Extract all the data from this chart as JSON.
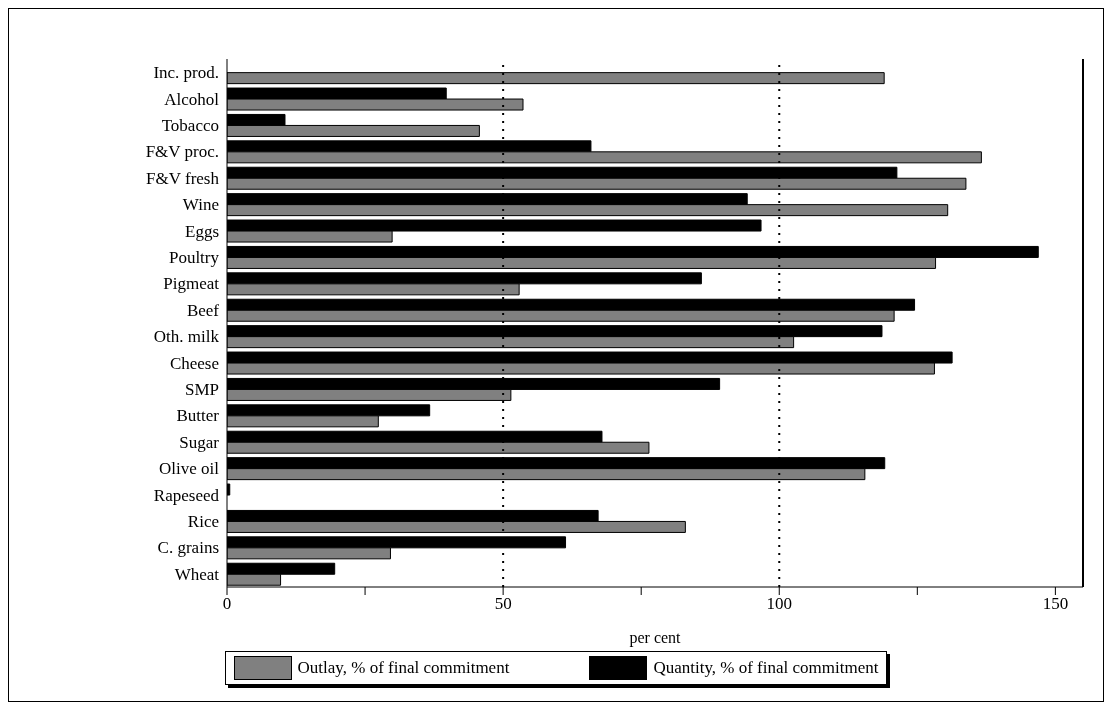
{
  "chart_data": {
    "type": "bar",
    "orientation": "horizontal",
    "xlabel": "per cent",
    "categories": [
      "Inc. prod.",
      "Alcohol",
      "Tobacco",
      "F&V proc.",
      "F&V fresh",
      "Wine",
      "Eggs",
      "Poultry",
      "Pigmeat",
      "Beef",
      "Oth. milk",
      "Cheese",
      "SMP",
      "Butter",
      "Sugar",
      "Olive oil",
      "Rapeseed",
      "Rice",
      "C. grains",
      "Wheat"
    ],
    "series": [
      {
        "name": "Outlay, % of final commitment",
        "color": "#808080",
        "values": [
          119,
          53.6,
          45.7,
          136.6,
          133.8,
          130.5,
          29.9,
          128.3,
          52.9,
          120.8,
          102.6,
          128.1,
          51.4,
          27.4,
          76.4,
          115.5,
          null,
          83,
          29.6,
          9.7
        ]
      },
      {
        "name": "Quantity, % of final commitment",
        "color": "#000000",
        "values": [
          null,
          39.7,
          10.5,
          65.9,
          121.3,
          94.2,
          96.7,
          146.9,
          85.9,
          124.5,
          118.6,
          131.3,
          89.2,
          36.7,
          67.9,
          119.1,
          0.5,
          67.2,
          61.3,
          19.5
        ]
      }
    ],
    "xlim": [
      0,
      155
    ],
    "xticks": [
      0,
      {
        "value": 25,
        "label": null
      },
      50,
      {
        "value": 75,
        "label": null
      },
      100,
      {
        "value": 125,
        "label": null
      },
      150
    ],
    "ref_lines": [
      {
        "axis": "x",
        "value": 50,
        "line_style": "dotted"
      },
      {
        "axis": "x",
        "value": 100,
        "line_style": "dotted"
      }
    ],
    "legend": "bottom"
  }
}
